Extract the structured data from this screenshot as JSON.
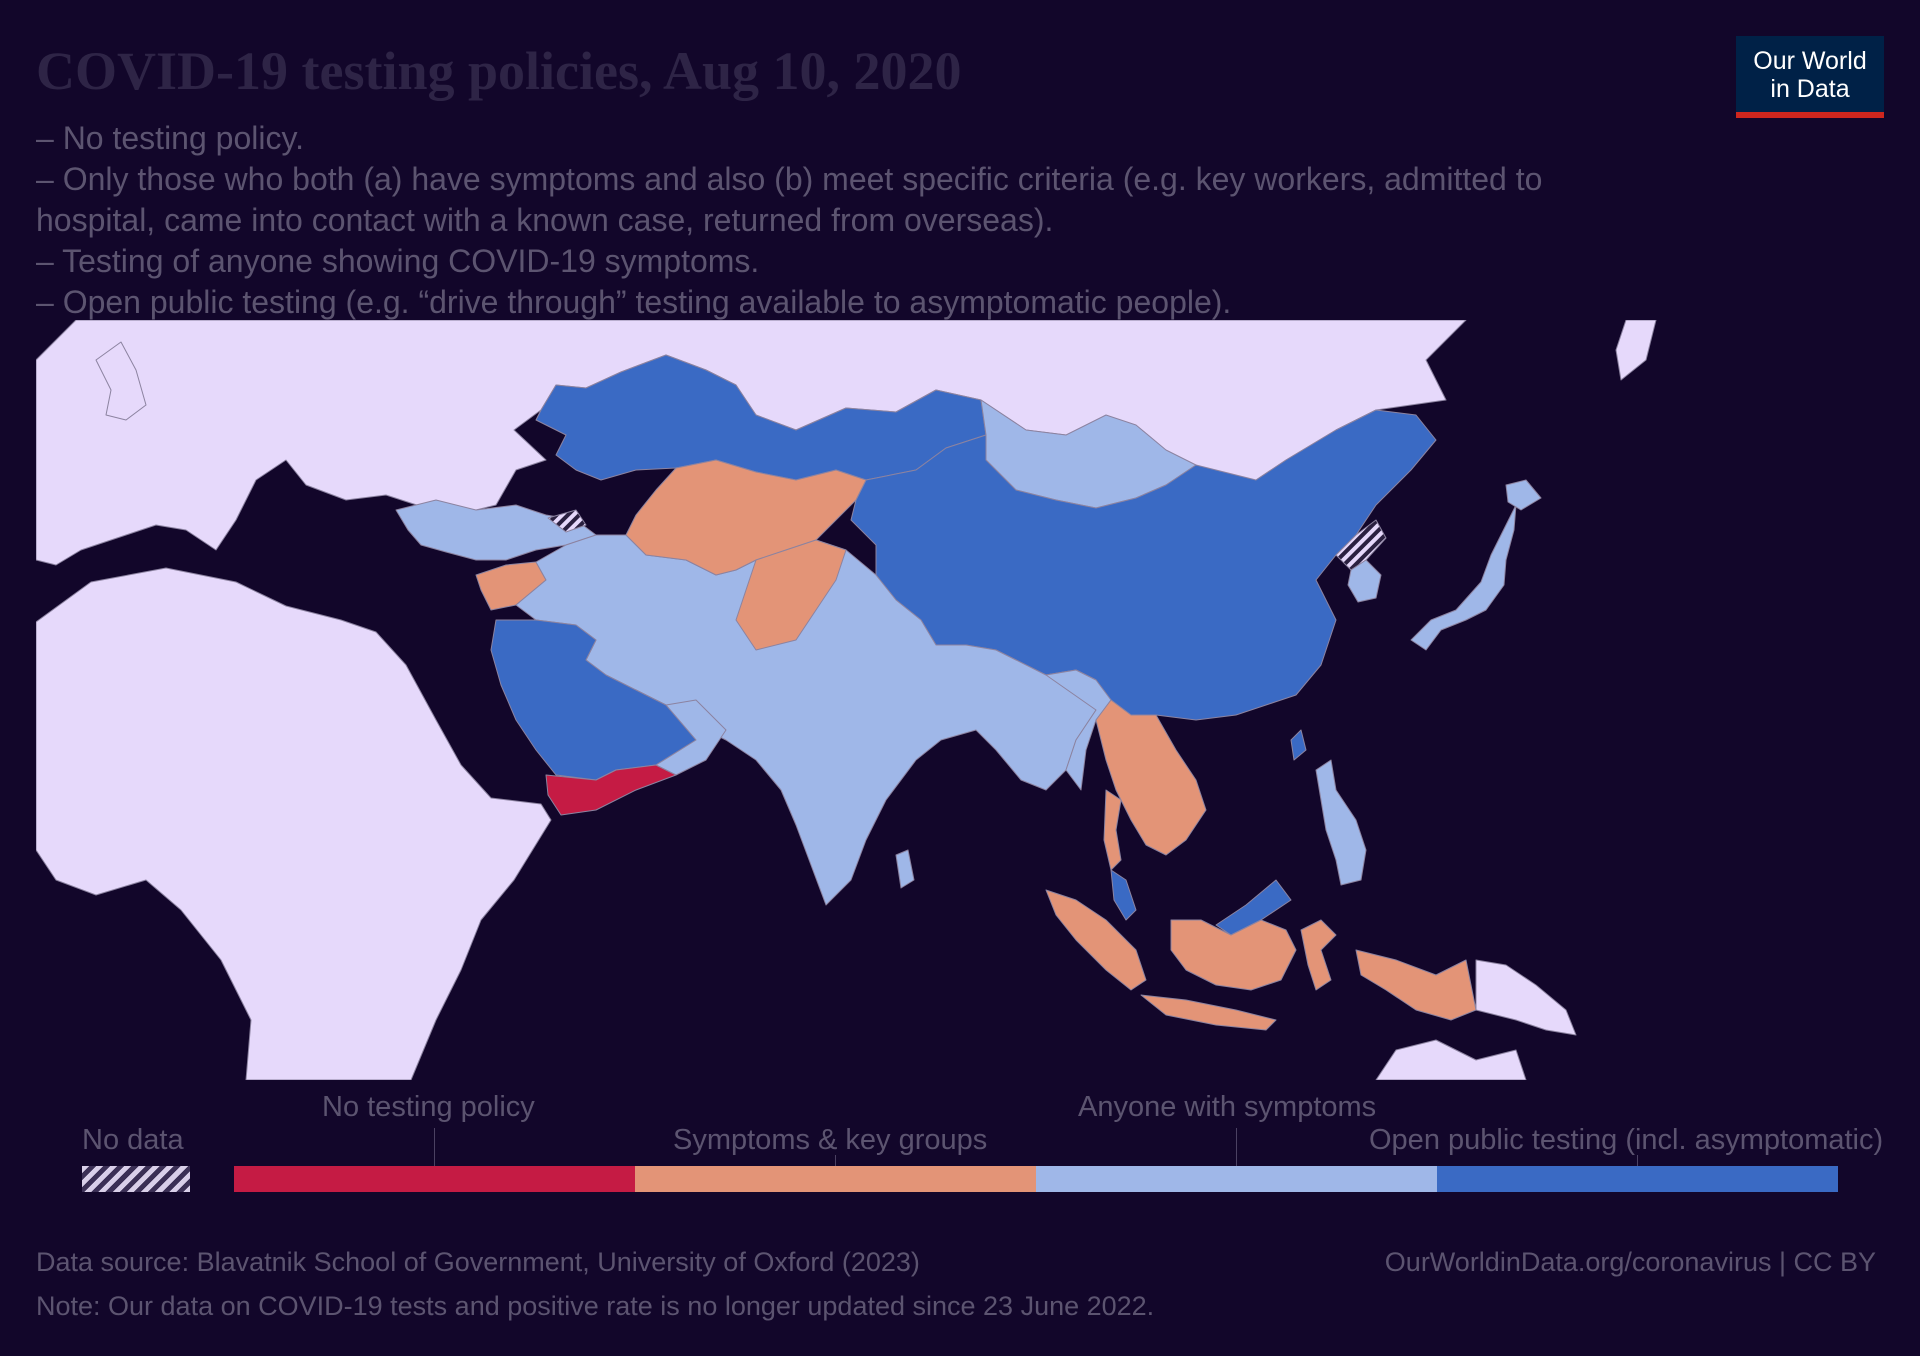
{
  "title": "COVID-19 testing policies, Aug 10, 2020",
  "subtitle": [
    "– No testing policy.",
    "– Only those who both (a) have symptoms and also (b) meet specific criteria (e.g. key workers, admitted to",
    "hospital, came into contact with a known case, returned from overseas).",
    "– Testing of anyone showing COVID-19 symptoms.",
    "– Open public testing (e.g. “drive through” testing available to asymptomatic people)."
  ],
  "logo": {
    "line1": "Our World",
    "line2": "in Data"
  },
  "legend": {
    "no_data": "No data",
    "categories": [
      {
        "label": "No testing policy",
        "color": "#c51b44"
      },
      {
        "label": "Symptoms & key groups",
        "color": "#e39477"
      },
      {
        "label": "Anyone with symptoms",
        "color": "#9fb7e8"
      },
      {
        "label": "Open public testing (incl. asymptomatic)",
        "color": "#3a6ac4"
      }
    ]
  },
  "colors": {
    "background": "#12062a",
    "land_no_data": "#e6d9fb",
    "no_testing": "#c51b44",
    "symptoms_key_groups": "#e39477",
    "anyone_with_symptoms": "#9fb7e8",
    "open_public": "#3a6ac4"
  },
  "footer": {
    "source": "Data source: Blavatnik School of Government, University of Oxford (2023)",
    "note": "Note: Our data on COVID-19 tests and positive rate is no longer updated since 23 June 2022.",
    "url": "OurWorldinData.org/coronavirus | CC BY"
  }
}
